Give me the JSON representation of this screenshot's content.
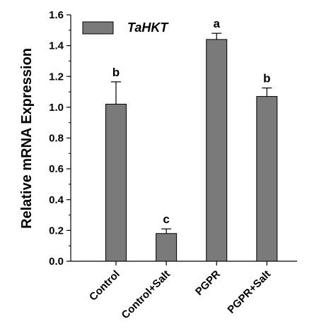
{
  "chart_data": {
    "type": "bar",
    "ylabel": "Relative mRNA Expression",
    "xlabel": "",
    "ylim": [
      0,
      1.6
    ],
    "yticks": [
      "0.0",
      "0.2",
      "0.4",
      "0.6",
      "0.8",
      "1.0",
      "1.2",
      "1.4",
      "1.6"
    ],
    "categories": [
      "Control",
      "Control+Salt",
      "PGPR",
      "PGPR+Salt"
    ],
    "series": [
      {
        "name": "TaHKT",
        "values": [
          1.02,
          0.18,
          1.44,
          1.07
        ],
        "errors": [
          0.145,
          0.03,
          0.04,
          0.055
        ],
        "significance": [
          "b",
          "c",
          "a",
          "b"
        ]
      }
    ],
    "legend_position": "top-left",
    "colors": {
      "bar": "#7a7a7a",
      "outline": "#000000"
    }
  }
}
